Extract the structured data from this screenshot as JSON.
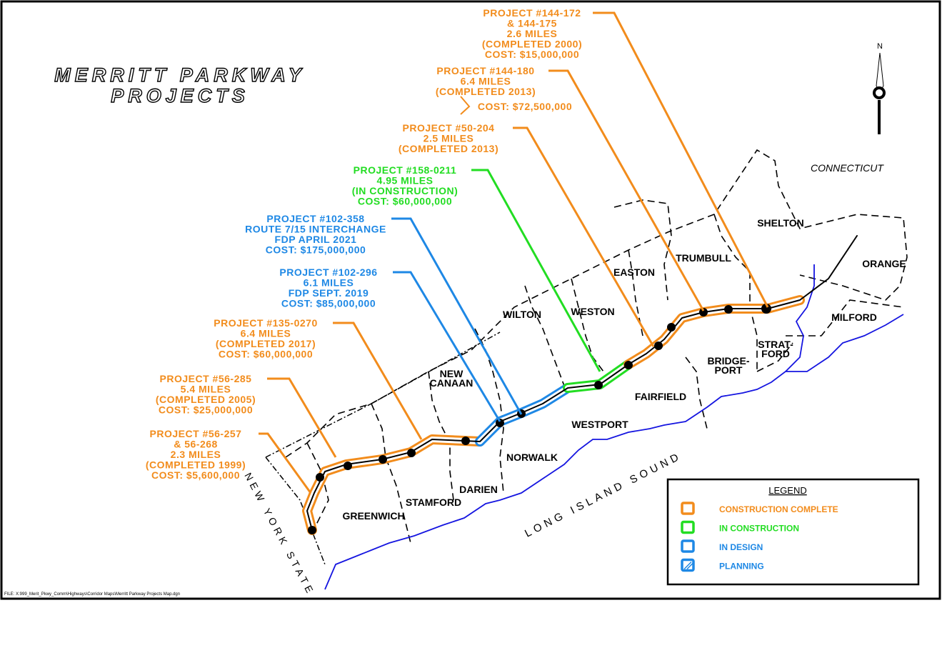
{
  "title": [
    "MERRITT PARKWAY",
    "PROJECTS"
  ],
  "projects": [
    {
      "lines": [
        "PROJECT #144-172",
        "& 144-175",
        "2.6 MILES",
        "(COMPLETED 2000)",
        "COST: $15,000,000"
      ],
      "color": "#f28c1c"
    },
    {
      "lines": [
        "PROJECT #144-180",
        "6.4 MILES",
        "(COMPLETED 2013)",
        "COST: $72,500,000"
      ],
      "color": "#f28c1c"
    },
    {
      "lines": [
        "PROJECT #50-204",
        "2.5 MILES",
        "(COMPLETED 2013)"
      ],
      "color": "#f28c1c"
    },
    {
      "lines": [
        "PROJECT #158-0211",
        "4.95 MILES",
        "(IN CONSTRUCTION)",
        "COST: $60,000,000"
      ],
      "color": "#22dd22"
    },
    {
      "lines": [
        "PROJECT #102-358",
        "ROUTE 7/15 INTERCHANGE",
        "FDP APRIL 2021",
        "COST: $175,000,000"
      ],
      "color": "#1e88e5"
    },
    {
      "lines": [
        "PROJECT #102-296",
        "6.1 MILES",
        "FDP SEPT. 2019",
        "COST: $85,000,000"
      ],
      "color": "#1e88e5"
    },
    {
      "lines": [
        "PROJECT #135-0270",
        "6.4 MILES",
        "(COMPLETED 2017)",
        "COST: $60,000,000"
      ],
      "color": "#f28c1c"
    },
    {
      "lines": [
        "PROJECT #56-285",
        "5.4 MILES",
        "(COMPLETED 2005)",
        "COST: $25,000,000"
      ],
      "color": "#f28c1c"
    },
    {
      "lines": [
        "PROJECT #56-257",
        "& 56-268",
        "2.3 MILES",
        "(COMPLETED 1999)",
        "COST: $5,600,000"
      ],
      "color": "#f28c1c"
    }
  ],
  "towns": [
    "SHELTON",
    "ORANGE",
    "TRUMBULL",
    "EASTON",
    "MILFORD",
    "WILTON",
    "WESTON",
    "STRAT-",
    "FORD",
    "BRIDGE-",
    "PORT",
    "NEW",
    "CANAAN",
    "FAIRFIELD",
    "WESTPORT",
    "NORWALK",
    "DARIEN",
    "STAMFORD",
    "GREENWICH"
  ],
  "regions": [
    "CONNECTICUT",
    "LONG ISLAND SOUND",
    "NEW YORK STATE"
  ],
  "compass": "N",
  "legend": {
    "title": "LEGEND",
    "items": [
      {
        "label": "CONSTRUCTION COMPLETE",
        "color": "#f28c1c"
      },
      {
        "label": "IN CONSTRUCTION",
        "color": "#22dd22"
      },
      {
        "label": "IN DESIGN",
        "color": "#1e88e5"
      },
      {
        "label": "PLANNING",
        "color": "#1e88e5"
      }
    ]
  },
  "file_note": "FILE: X:999_Merit_Pkwy_Comm\\Highways\\Corridor Maps\\Merritt Parkway Projects Map.dgn"
}
